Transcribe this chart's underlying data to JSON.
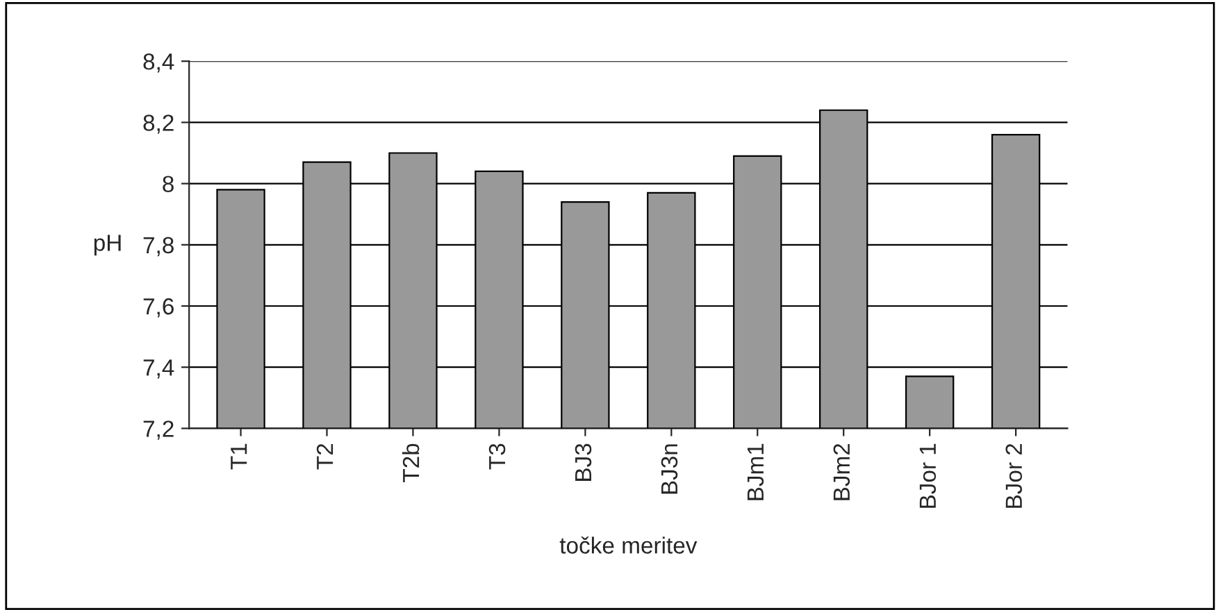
{
  "chart_data": {
    "type": "bar",
    "categories": [
      "T1",
      "T2",
      "T2b",
      "T3",
      "BJ3",
      "BJ3n",
      "BJm1",
      "BJm2",
      "BJor 1",
      "BJor 2"
    ],
    "values": [
      7.98,
      8.07,
      8.1,
      8.04,
      7.94,
      7.97,
      8.09,
      8.24,
      7.37,
      8.16
    ],
    "color": "#999999",
    "xlabel": "točke meritev",
    "ylabel": "pH",
    "ylim": [
      7.2,
      8.4
    ],
    "yticks": [
      {
        "value": 7.2,
        "label": "7,2"
      },
      {
        "value": 7.4,
        "label": "7,4"
      },
      {
        "value": 7.6,
        "label": "7,6"
      },
      {
        "value": 7.8,
        "label": "7,8"
      },
      {
        "value": 8,
        "label": "8"
      },
      {
        "value": 8.2,
        "label": "8,2"
      },
      {
        "value": 8.4,
        "label": "8,4"
      }
    ],
    "grid": "y"
  }
}
